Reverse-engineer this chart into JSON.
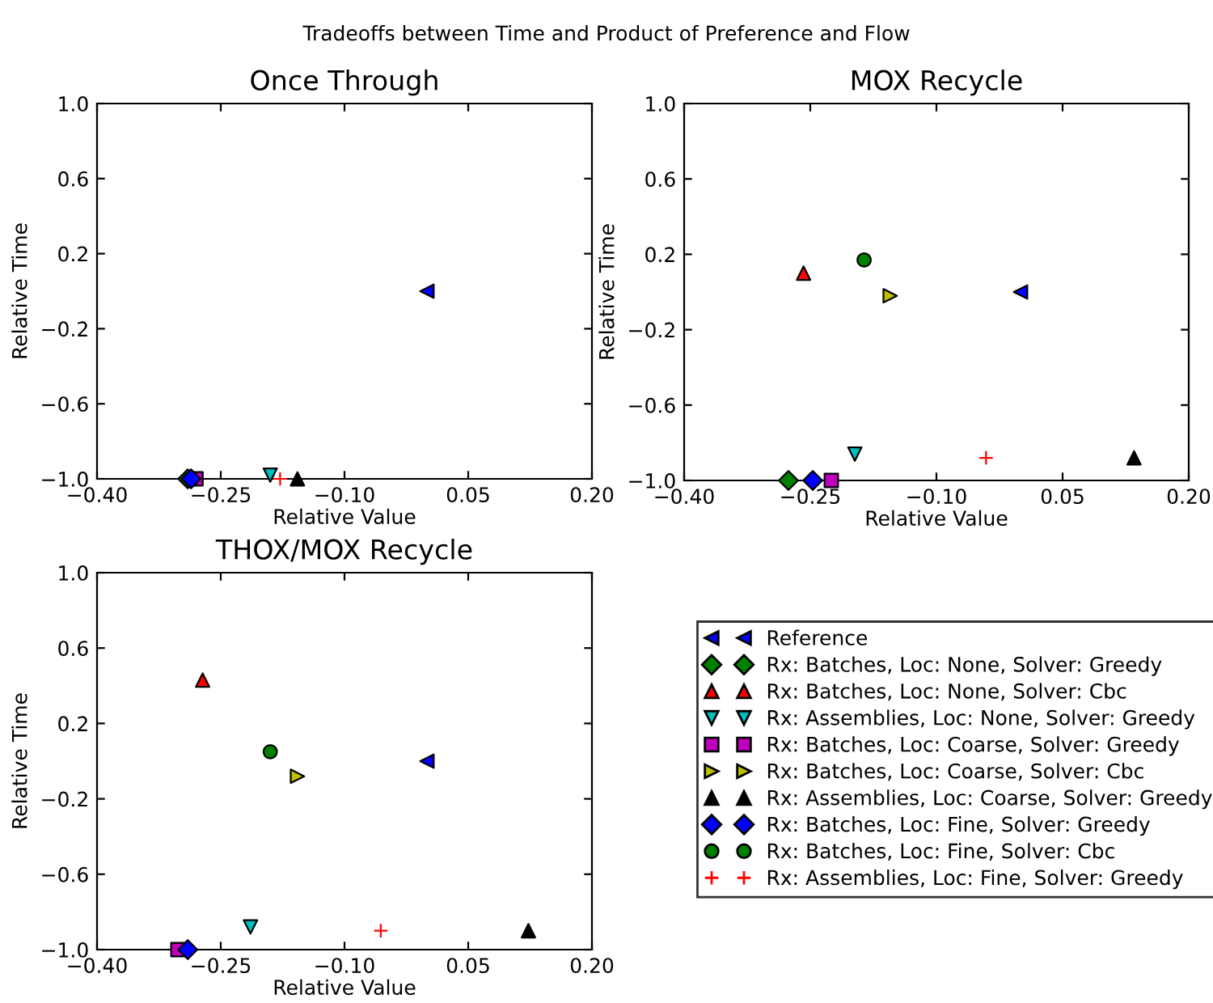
{
  "chart_data": [
    {
      "type": "scatter",
      "title": "Once Through",
      "xlabel": "Relative Value",
      "ylabel": "Relative Time",
      "annotations": [
        "Tradeoffs between Time and Product of Preference and Flow"
      ],
      "xlim": [
        -0.4,
        0.2
      ],
      "ylim": [
        -1.0,
        1.0
      ],
      "xticks": [
        {
          "value": -0.4,
          "label": "−0.40"
        },
        {
          "value": -0.25,
          "label": "−0.25"
        },
        {
          "value": -0.1,
          "label": "−0.10"
        },
        {
          "value": 0.05,
          "label": "0.05"
        },
        {
          "value": 0.2,
          "label": "0.20"
        }
      ],
      "yticks": [
        {
          "value": -1.0,
          "label": "−1.0"
        },
        {
          "value": -0.6,
          "label": "−0.6"
        },
        {
          "value": -0.2,
          "label": "−0.2"
        },
        {
          "value": 0.2,
          "label": "0.2"
        },
        {
          "value": 0.6,
          "label": "0.6"
        },
        {
          "value": 1.0,
          "label": "1.0"
        }
      ],
      "series": [
        {
          "color": "#0000ff",
          "marker": "triangle-left",
          "x": [
            0.0
          ],
          "values": [
            0.0
          ]
        },
        {
          "color": "#008000",
          "marker": "diamond",
          "x": [
            -0.29
          ],
          "values": [
            -1.0
          ]
        },
        {
          "color": "#00bfbf",
          "marker": "triangle-down",
          "x": [
            -0.19
          ],
          "values": [
            -0.98
          ]
        },
        {
          "color": "#bf00bf",
          "marker": "square",
          "x": [
            -0.28
          ],
          "values": [
            -1.0
          ]
        },
        {
          "color": "#000000",
          "marker": "triangle",
          "x": [
            -0.157
          ],
          "values": [
            -1.0
          ]
        },
        {
          "color": "#0000ff",
          "marker": "diamond",
          "x": [
            -0.286
          ],
          "values": [
            -1.0
          ]
        },
        {
          "color": "#ff0000",
          "marker": "cross",
          "x": [
            -0.178
          ],
          "values": [
            -1.0
          ]
        }
      ]
    },
    {
      "type": "scatter",
      "title": "MOX Recycle",
      "xlabel": "Relative Value",
      "ylabel": "Relative Time",
      "legend": "bottom",
      "xlim": [
        -0.4,
        0.2
      ],
      "ylim": [
        -1.0,
        1.0
      ],
      "xticks": [
        {
          "value": -0.4,
          "label": "−0.40"
        },
        {
          "value": -0.25,
          "label": "−0.25"
        },
        {
          "value": -0.1,
          "label": "−0.10"
        },
        {
          "value": 0.05,
          "label": "0.05"
        },
        {
          "value": 0.2,
          "label": "0.20"
        }
      ],
      "yticks": [
        {
          "value": -1.0,
          "label": "−1.0"
        },
        {
          "value": -0.6,
          "label": "−0.6"
        },
        {
          "value": -0.2,
          "label": "−0.2"
        },
        {
          "value": 0.2,
          "label": "0.2"
        },
        {
          "value": 0.6,
          "label": "0.6"
        },
        {
          "value": 1.0,
          "label": "1.0"
        }
      ],
      "series": [
        {
          "name": "Reference",
          "color": "#0000ff",
          "marker": "triangle-left",
          "x": [
            0.0
          ],
          "values": [
            0.0
          ]
        },
        {
          "name": "Rx: Batches, Loc: None, Solver: Greedy",
          "color": "#008000",
          "marker": "diamond",
          "x": [
            -0.276
          ],
          "values": [
            -1.0
          ]
        },
        {
          "name": "Rx: Batches, Loc: None, Solver: Cbc",
          "color": "#ff0000",
          "marker": "triangle",
          "x": [
            -0.258
          ],
          "values": [
            0.1
          ]
        },
        {
          "name": "Rx: Assemblies, Loc: None, Solver: Greedy",
          "color": "#00bfbf",
          "marker": "triangle-down",
          "x": [
            -0.197
          ],
          "values": [
            -0.86
          ]
        },
        {
          "name": "Rx: Batches, Loc: Coarse, Solver: Greedy",
          "color": "#bf00bf",
          "marker": "square",
          "x": [
            -0.225
          ],
          "values": [
            -1.0
          ]
        },
        {
          "name": "Rx: Batches, Loc: Coarse, Solver: Cbc",
          "color": "#bfbf00",
          "marker": "triangle-right",
          "x": [
            -0.155
          ],
          "values": [
            -0.02
          ]
        },
        {
          "name": "Rx: Assemblies, Loc: Coarse, Solver: Greedy",
          "color": "#000000",
          "marker": "triangle",
          "x": [
            0.135
          ],
          "values": [
            -0.88
          ]
        },
        {
          "name": "Rx: Batches, Loc: Fine, Solver: Greedy",
          "color": "#0000ff",
          "marker": "diamond",
          "x": [
            -0.247
          ],
          "values": [
            -1.0
          ]
        },
        {
          "name": "Rx: Batches, Loc: Fine, Solver: Cbc",
          "color": "#008000",
          "marker": "circle",
          "x": [
            -0.186
          ],
          "values": [
            0.17
          ]
        },
        {
          "name": "Rx: Assemblies, Loc: Fine, Solver: Greedy",
          "color": "#ff0000",
          "marker": "cross",
          "x": [
            -0.041
          ],
          "values": [
            -0.88
          ]
        }
      ]
    },
    {
      "type": "scatter",
      "title": "THOX/MOX Recycle",
      "xlabel": "Relative Value",
      "ylabel": "Relative Time",
      "xlim": [
        -0.4,
        0.2
      ],
      "ylim": [
        -1.0,
        1.0
      ],
      "xticks": [
        {
          "value": -0.4,
          "label": "−0.40"
        },
        {
          "value": -0.25,
          "label": "−0.25"
        },
        {
          "value": -0.1,
          "label": "−0.10"
        },
        {
          "value": 0.05,
          "label": "0.05"
        },
        {
          "value": 0.2,
          "label": "0.20"
        }
      ],
      "yticks": [
        {
          "value": -1.0,
          "label": "−1.0"
        },
        {
          "value": -0.6,
          "label": "−0.6"
        },
        {
          "value": -0.2,
          "label": "−0.2"
        },
        {
          "value": 0.2,
          "label": "0.2"
        },
        {
          "value": 0.6,
          "label": "0.6"
        },
        {
          "value": 1.0,
          "label": "1.0"
        }
      ],
      "series": [
        {
          "color": "#0000ff",
          "marker": "triangle-left",
          "x": [
            0.0
          ],
          "values": [
            0.0
          ]
        },
        {
          "color": "#ff0000",
          "marker": "triangle",
          "x": [
            -0.272
          ],
          "values": [
            0.43
          ]
        },
        {
          "color": "#00bfbf",
          "marker": "triangle-down",
          "x": [
            -0.214
          ],
          "values": [
            -0.88
          ]
        },
        {
          "color": "#bf00bf",
          "marker": "square",
          "x": [
            -0.302
          ],
          "values": [
            -1.0
          ]
        },
        {
          "color": "#bfbf00",
          "marker": "triangle-right",
          "x": [
            -0.157
          ],
          "values": [
            -0.08
          ]
        },
        {
          "color": "#000000",
          "marker": "triangle",
          "x": [
            0.123
          ],
          "values": [
            -0.9
          ]
        },
        {
          "color": "#0000ff",
          "marker": "diamond",
          "x": [
            -0.29
          ],
          "values": [
            -1.0
          ]
        },
        {
          "color": "#008000",
          "marker": "circle",
          "x": [
            -0.19
          ],
          "values": [
            0.05
          ]
        },
        {
          "color": "#ff0000",
          "marker": "cross",
          "x": [
            -0.056
          ],
          "values": [
            -0.9
          ]
        }
      ]
    }
  ]
}
